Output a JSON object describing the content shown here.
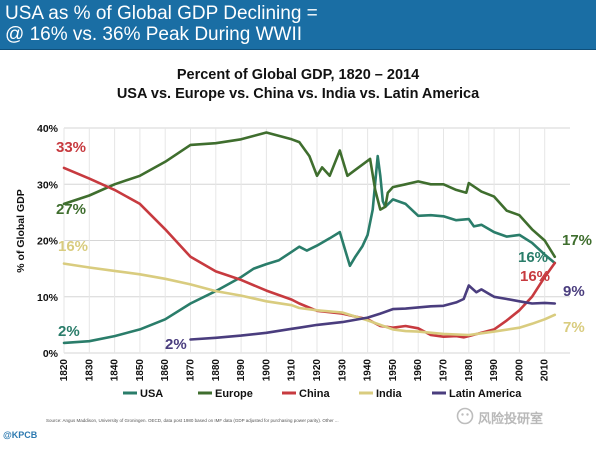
{
  "banner": {
    "line1": "USA as % of Global GDP Declining =",
    "line2": "@ 16% vs. 36% Peak During WWII"
  },
  "footer": {
    "source": "Source: Angus Maddison, University of Groningen. OECD, data post 1980 based on IMF data (GDP adjusted for purchasing power parity). Other ...",
    "brand": "@KPCB",
    "watermark": "风险投研室"
  },
  "colors": {
    "banner": "#1a6ea4",
    "usa": "#2a7d6a",
    "europe": "#3f6e2e",
    "china": "#c73a3f",
    "india": "#d9cc7f",
    "latin_america": "#4a3d7e",
    "grid": "#d6d6d6"
  },
  "chart_data": {
    "type": "line",
    "title": "Percent of Global GDP, 1820 – 2014",
    "subtitle": "USA vs. Europe vs. China vs. India vs. Latin America",
    "ylabel": "% of Global GDP",
    "xlabel": "",
    "xlim": [
      1820,
      2014
    ],
    "ylim": [
      0,
      40
    ],
    "grid": true,
    "legend_position": "bottom",
    "x_ticks": [
      "1820",
      "1830",
      "1840",
      "1850",
      "1860",
      "1870",
      "1880",
      "1890",
      "1900",
      "1910",
      "1920",
      "1930",
      "1940",
      "1950",
      "1960",
      "1970",
      "1980",
      "1990",
      "2000",
      "2010"
    ],
    "y_ticks": [
      "0%",
      "10%",
      "20%",
      "30%",
      "40%"
    ],
    "series": [
      {
        "name": "USA",
        "color": "#2a7d6a",
        "points": [
          [
            1820,
            1.8
          ],
          [
            1830,
            2.1
          ],
          [
            1840,
            3.0
          ],
          [
            1850,
            4.2
          ],
          [
            1860,
            6.0
          ],
          [
            1870,
            8.8
          ],
          [
            1880,
            11.0
          ],
          [
            1890,
            13.5
          ],
          [
            1895,
            15.0
          ],
          [
            1900,
            15.8
          ],
          [
            1905,
            16.5
          ],
          [
            1910,
            18.0
          ],
          [
            1913,
            18.9
          ],
          [
            1916,
            18.2
          ],
          [
            1920,
            19.1
          ],
          [
            1925,
            20.4
          ],
          [
            1929,
            21.5
          ],
          [
            1931,
            18.5
          ],
          [
            1933,
            15.5
          ],
          [
            1935,
            17.0
          ],
          [
            1938,
            19.0
          ],
          [
            1940,
            21.0
          ],
          [
            1942,
            25.5
          ],
          [
            1944,
            35.0
          ],
          [
            1945,
            31.5
          ],
          [
            1946,
            27.0
          ],
          [
            1947,
            26.0
          ],
          [
            1950,
            27.3
          ],
          [
            1955,
            26.5
          ],
          [
            1960,
            24.4
          ],
          [
            1965,
            24.5
          ],
          [
            1970,
            24.3
          ],
          [
            1975,
            23.6
          ],
          [
            1980,
            23.8
          ],
          [
            1982,
            22.5
          ],
          [
            1985,
            22.8
          ],
          [
            1990,
            21.5
          ],
          [
            1995,
            20.7
          ],
          [
            2000,
            21.0
          ],
          [
            2005,
            19.6
          ],
          [
            2010,
            17.5
          ],
          [
            2014,
            16.0
          ]
        ]
      },
      {
        "name": "Europe",
        "color": "#3f6e2e",
        "points": [
          [
            1820,
            26.5
          ],
          [
            1830,
            28.0
          ],
          [
            1840,
            30.0
          ],
          [
            1850,
            31.5
          ],
          [
            1860,
            34.0
          ],
          [
            1870,
            37.0
          ],
          [
            1880,
            37.3
          ],
          [
            1890,
            38.0
          ],
          [
            1900,
            39.2
          ],
          [
            1910,
            38.0
          ],
          [
            1913,
            37.5
          ],
          [
            1917,
            35.0
          ],
          [
            1920,
            31.5
          ],
          [
            1922,
            33.0
          ],
          [
            1925,
            31.5
          ],
          [
            1929,
            36.0
          ],
          [
            1932,
            31.5
          ],
          [
            1935,
            32.5
          ],
          [
            1938,
            33.5
          ],
          [
            1941,
            34.5
          ],
          [
            1943,
            29.0
          ],
          [
            1945,
            25.5
          ],
          [
            1947,
            26.0
          ],
          [
            1948,
            28.5
          ],
          [
            1950,
            29.5
          ],
          [
            1955,
            30.0
          ],
          [
            1960,
            30.5
          ],
          [
            1965,
            30.0
          ],
          [
            1970,
            30.0
          ],
          [
            1975,
            29.0
          ],
          [
            1979,
            28.5
          ],
          [
            1980,
            30.2
          ],
          [
            1985,
            28.7
          ],
          [
            1990,
            27.8
          ],
          [
            1995,
            25.3
          ],
          [
            2000,
            24.5
          ],
          [
            2005,
            22.0
          ],
          [
            2010,
            20.0
          ],
          [
            2014,
            17.1
          ]
        ]
      },
      {
        "name": "China",
        "color": "#c73a3f",
        "points": [
          [
            1820,
            32.9
          ],
          [
            1830,
            31.0
          ],
          [
            1840,
            29.0
          ],
          [
            1850,
            26.5
          ],
          [
            1860,
            22.0
          ],
          [
            1870,
            17.1
          ],
          [
            1880,
            14.5
          ],
          [
            1890,
            13.0
          ],
          [
            1900,
            11.1
          ],
          [
            1910,
            9.5
          ],
          [
            1913,
            8.8
          ],
          [
            1920,
            7.5
          ],
          [
            1930,
            7.0
          ],
          [
            1940,
            6.0
          ],
          [
            1945,
            4.8
          ],
          [
            1950,
            4.5
          ],
          [
            1955,
            4.8
          ],
          [
            1960,
            4.4
          ],
          [
            1965,
            3.2
          ],
          [
            1970,
            2.9
          ],
          [
            1975,
            3.0
          ],
          [
            1978,
            2.8
          ],
          [
            1980,
            3.0
          ],
          [
            1985,
            3.6
          ],
          [
            1990,
            4.2
          ],
          [
            1995,
            5.8
          ],
          [
            2000,
            7.6
          ],
          [
            2005,
            10.0
          ],
          [
            2010,
            13.5
          ],
          [
            2014,
            16.0
          ]
        ]
      },
      {
        "name": "India",
        "color": "#d9cc7f",
        "points": [
          [
            1820,
            15.9
          ],
          [
            1830,
            15.2
          ],
          [
            1840,
            14.6
          ],
          [
            1850,
            14.0
          ],
          [
            1860,
            13.2
          ],
          [
            1870,
            12.2
          ],
          [
            1880,
            11.0
          ],
          [
            1890,
            10.2
          ],
          [
            1900,
            9.2
          ],
          [
            1910,
            8.5
          ],
          [
            1913,
            8.0
          ],
          [
            1920,
            7.6
          ],
          [
            1930,
            7.2
          ],
          [
            1940,
            5.8
          ],
          [
            1945,
            5.0
          ],
          [
            1950,
            4.2
          ],
          [
            1955,
            3.9
          ],
          [
            1960,
            3.8
          ],
          [
            1970,
            3.4
          ],
          [
            1980,
            3.2
          ],
          [
            1985,
            3.5
          ],
          [
            1990,
            3.8
          ],
          [
            2000,
            4.5
          ],
          [
            2005,
            5.2
          ],
          [
            2010,
            6.0
          ],
          [
            2014,
            6.8
          ]
        ]
      },
      {
        "name": "Latin America",
        "color": "#4a3d7e",
        "points": [
          [
            1870,
            2.4
          ],
          [
            1880,
            2.7
          ],
          [
            1890,
            3.1
          ],
          [
            1900,
            3.6
          ],
          [
            1910,
            4.3
          ],
          [
            1913,
            4.5
          ],
          [
            1920,
            5.0
          ],
          [
            1930,
            5.5
          ],
          [
            1940,
            6.3
          ],
          [
            1945,
            7.0
          ],
          [
            1950,
            7.8
          ],
          [
            1955,
            7.9
          ],
          [
            1960,
            8.1
          ],
          [
            1965,
            8.3
          ],
          [
            1970,
            8.4
          ],
          [
            1975,
            9.0
          ],
          [
            1978,
            9.6
          ],
          [
            1980,
            12.0
          ],
          [
            1983,
            10.8
          ],
          [
            1985,
            11.3
          ],
          [
            1988,
            10.5
          ],
          [
            1990,
            10.0
          ],
          [
            1995,
            9.6
          ],
          [
            2000,
            9.2
          ],
          [
            2005,
            8.8
          ],
          [
            2010,
            8.9
          ],
          [
            2014,
            8.8
          ]
        ]
      }
    ],
    "annotations": [
      {
        "text": "33%",
        "color": "#c73a3f",
        "series": "China"
      },
      {
        "text": "27%",
        "color": "#3f6e2e",
        "series": "Europe"
      },
      {
        "text": "16%",
        "color": "#d9cc7f",
        "series": "India"
      },
      {
        "text": "2%",
        "color": "#2a7d6a",
        "series": "USA"
      },
      {
        "text": "2%",
        "color": "#4a3d7e",
        "series": "Latin America"
      },
      {
        "text": "17%",
        "color": "#3f6e2e",
        "series": "Europe"
      },
      {
        "text": "16%",
        "color": "#2a7d6a",
        "series": "USA"
      },
      {
        "text": "16%",
        "color": "#c73a3f",
        "series": "China"
      },
      {
        "text": "9%",
        "color": "#4a3d7e",
        "series": "Latin America"
      },
      {
        "text": "7%",
        "color": "#d9cc7f",
        "series": "India"
      }
    ],
    "legend": [
      "USA",
      "Europe",
      "China",
      "India",
      "Latin America"
    ]
  }
}
